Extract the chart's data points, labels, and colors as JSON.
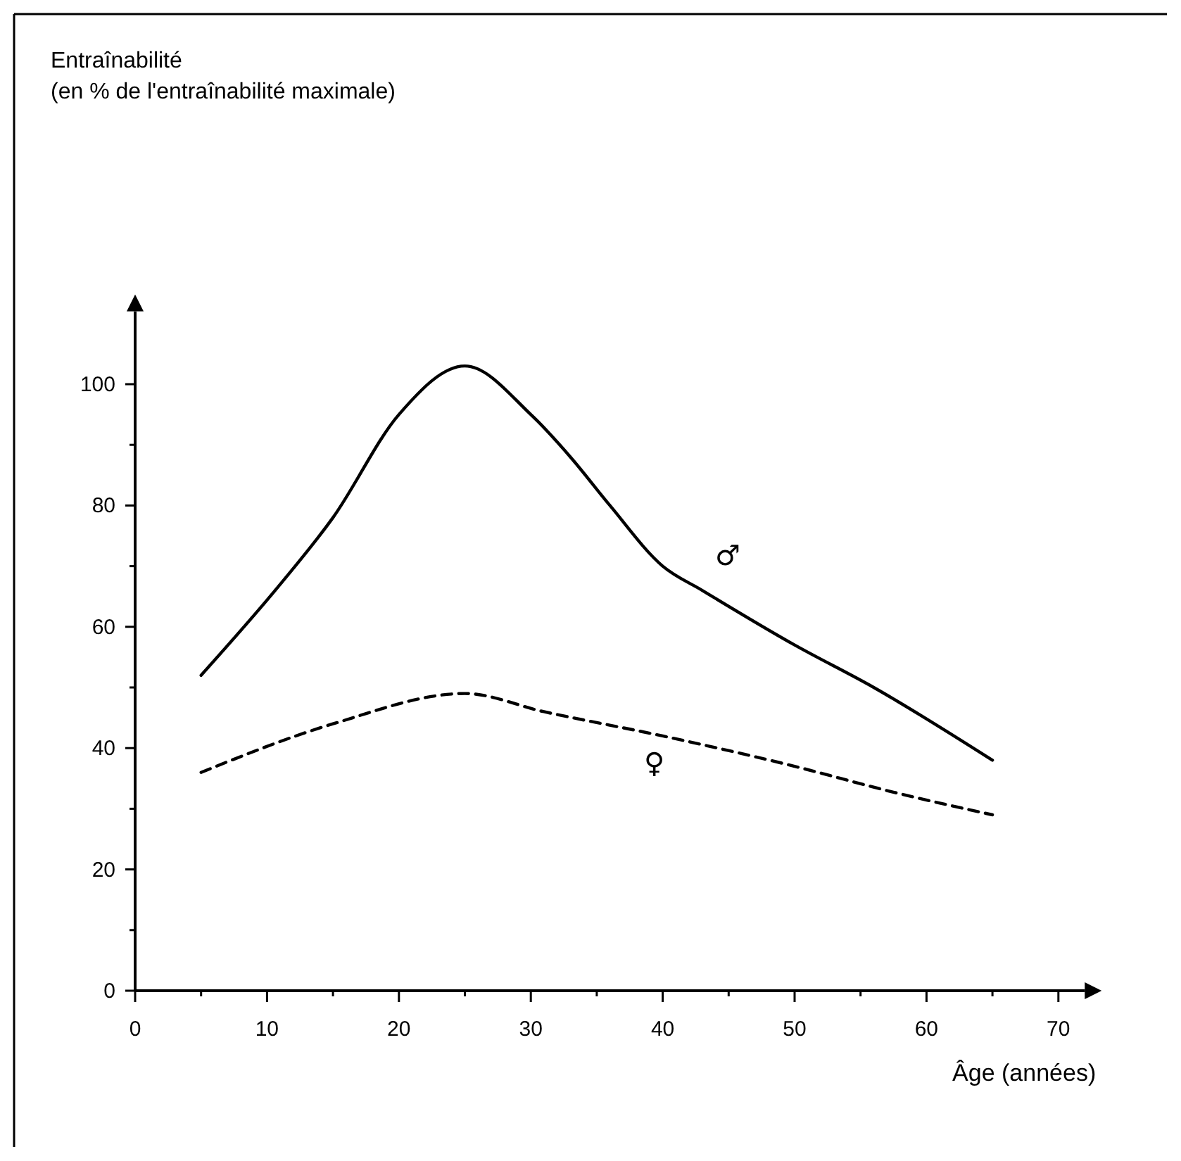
{
  "chart_data": {
    "type": "line",
    "annotations": [
      "Entraînabilité\n(en % de l'entraînabilité maximale)"
    ],
    "xlabel": "Âge (années)",
    "xlim": [
      0,
      72
    ],
    "ylim": [
      0,
      112
    ],
    "xticks": [
      0,
      {
        "value": 5,
        "label": null
      },
      10,
      {
        "value": 15,
        "label": null
      },
      20,
      {
        "value": 25,
        "label": null
      },
      30,
      {
        "value": 35,
        "label": null
      },
      40,
      {
        "value": 45,
        "label": null
      },
      50,
      {
        "value": 55,
        "label": null
      },
      60,
      {
        "value": 65,
        "label": null
      },
      70
    ],
    "yticks": [
      0,
      {
        "value": 10,
        "label": null
      },
      20,
      {
        "value": 30,
        "label": null
      },
      40,
      {
        "value": 50,
        "label": null
      },
      60,
      {
        "value": 70,
        "label": null
      },
      80,
      {
        "value": 90,
        "label": null
      },
      100
    ],
    "grid": false,
    "marker": "none",
    "series": [
      {
        "name": "♂",
        "color": "#000000",
        "line_style": "solid",
        "x": [
          5,
          11,
          15,
          20,
          25,
          30,
          33,
          36,
          40,
          43,
          50,
          56,
          65
        ],
        "values": [
          52,
          67,
          78,
          95,
          103,
          95,
          88,
          80,
          70,
          66,
          57,
          50,
          38
        ]
      },
      {
        "name": "♀",
        "color": "#000000",
        "line_style": "dashed",
        "x": [
          5,
          15,
          25,
          31,
          40,
          50,
          57,
          65
        ],
        "values": [
          36,
          44,
          49,
          46,
          42,
          37,
          33,
          29
        ]
      }
    ]
  }
}
